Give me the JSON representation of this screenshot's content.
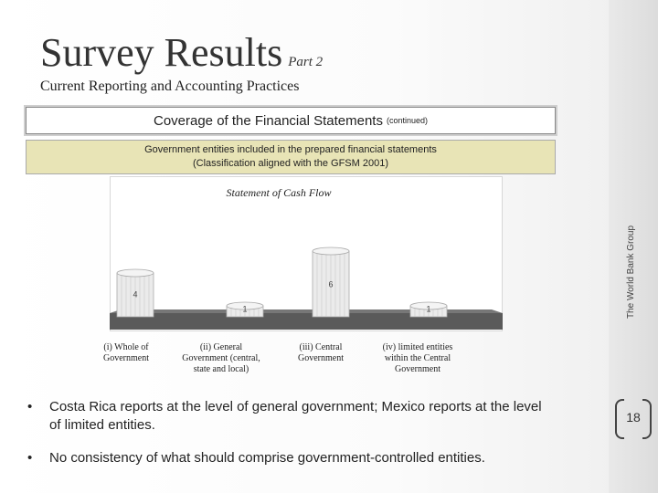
{
  "slide": {
    "title": "Survey Results",
    "title_suffix": "Part 2",
    "subtitle": "Current Reporting and Accounting Practices",
    "coverage_title": "Coverage of the Financial Statements",
    "coverage_sub": "(continued)",
    "gov_line1": "Government entities included in the prepared financial statements",
    "gov_line2": "(Classification aligned with the GFSM 2001)",
    "side_label": "The World Bank Group",
    "page_number": "18",
    "bullets": [
      "Costa Rica reports at the level of general government; Mexico reports at the level of limited entities.",
      "No consistency of what should comprise government-controlled entities."
    ]
  },
  "chart_data": {
    "type": "bar",
    "title": "Statement of Cash Flow",
    "categories": [
      [
        "(i) Whole of",
        "Government"
      ],
      [
        "(ii) General",
        "Government (central,",
        "state and local)"
      ],
      [
        "(iii) Central",
        "Government"
      ],
      [
        "(iv) limited entities",
        "within the Central",
        "Government"
      ]
    ],
    "values": [
      4,
      1,
      6,
      1
    ],
    "data_labels": [
      "4",
      "1",
      "6",
      "1"
    ],
    "ylim": [
      0,
      7
    ],
    "colors": {
      "bar": "#ebebeb",
      "bar_edge": "#aaaaaa",
      "floor": "#5a5a5a",
      "frame": "#d8d8d8"
    }
  }
}
